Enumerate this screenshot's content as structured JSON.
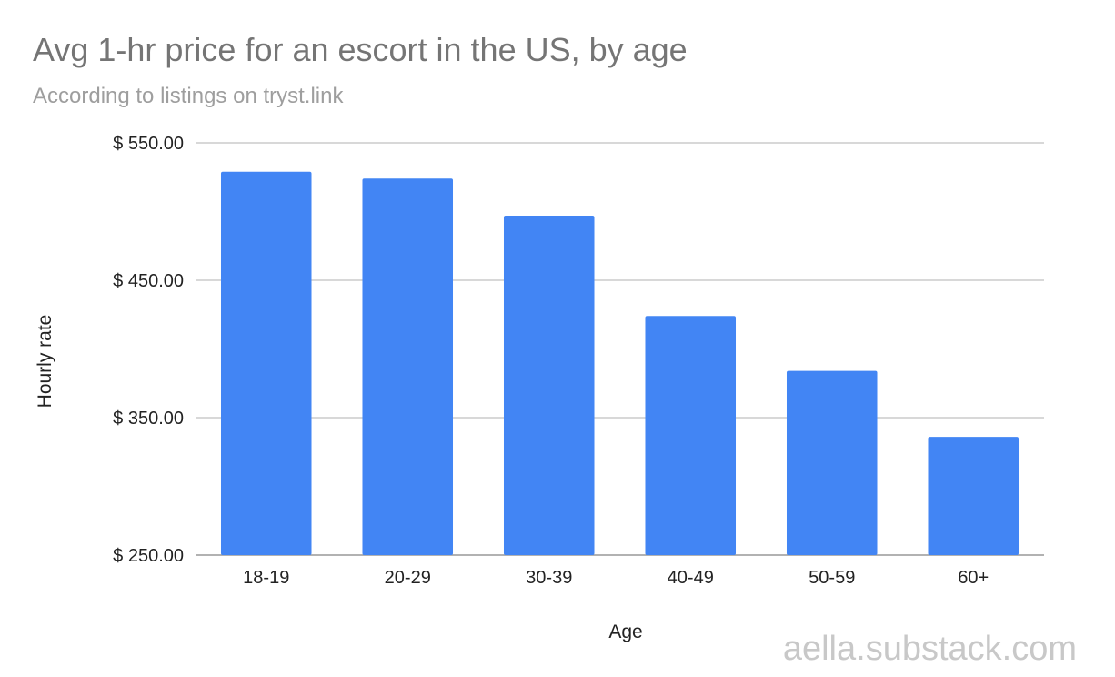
{
  "chart_data": {
    "type": "bar",
    "title": "Avg 1-hr price for an escort in the US, by age",
    "subtitle": "According to listings on tryst.link",
    "xlabel": "Age",
    "ylabel": "Hourly rate",
    "categories": [
      "18-19",
      "20-29",
      "30-39",
      "40-49",
      "50-59",
      "60+"
    ],
    "values": [
      529,
      524,
      497,
      424,
      384,
      336
    ],
    "ylim": [
      250,
      550
    ],
    "yticks": [
      250,
      350,
      450,
      550
    ],
    "ytick_labels": [
      "$ 250.00",
      "$ 350.00",
      "$ 450.00",
      "$ 550.00"
    ],
    "grid": true,
    "legend": "none",
    "bar_color": "#4285f4"
  },
  "watermark": "aella.substack.com"
}
